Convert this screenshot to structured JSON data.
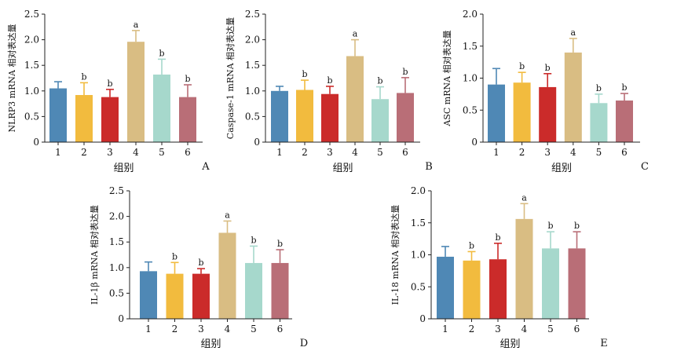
{
  "chart_data": [
    {
      "type": "bar",
      "panel": "A",
      "categories": [
        "1",
        "2",
        "3",
        "4",
        "5",
        "6"
      ],
      "values": [
        1.05,
        0.92,
        0.88,
        1.96,
        1.32,
        0.88
      ],
      "errors": [
        0.13,
        0.24,
        0.15,
        0.22,
        0.3,
        0.24
      ],
      "significance": [
        "",
        "b",
        "b",
        "a",
        "b",
        "b"
      ],
      "ylabel": "NLRP3 mRNA 相对表达量",
      "xlabel": "组别",
      "ylim": [
        0,
        2.5
      ],
      "yticks": [
        "0",
        "0.5",
        "1.0",
        "1.5",
        "2.0",
        "2.5"
      ],
      "colors": [
        "#4f88b5",
        "#f2bb3e",
        "#cb2b2a",
        "#d9bd83",
        "#a6d8cc",
        "#b96e77"
      ]
    },
    {
      "type": "bar",
      "panel": "B",
      "categories": [
        "1",
        "2",
        "3",
        "4",
        "5",
        "6"
      ],
      "values": [
        1.0,
        1.02,
        0.94,
        1.68,
        0.84,
        0.96
      ],
      "errors": [
        0.09,
        0.19,
        0.15,
        0.32,
        0.24,
        0.3
      ],
      "significance": [
        "",
        "b",
        "b",
        "a",
        "b",
        "b"
      ],
      "ylabel": "Caspase-1 mRNA 相对表达量",
      "xlabel": "组别",
      "ylim": [
        0,
        2.5
      ],
      "yticks": [
        "0",
        "0.5",
        "1.0",
        "1.5",
        "2.0",
        "2.5"
      ],
      "colors": [
        "#4f88b5",
        "#f2bb3e",
        "#cb2b2a",
        "#d9bd83",
        "#a6d8cc",
        "#b96e77"
      ]
    },
    {
      "type": "bar",
      "panel": "C",
      "categories": [
        "1",
        "2",
        "3",
        "4",
        "5",
        "6"
      ],
      "values": [
        0.9,
        0.93,
        0.86,
        1.4,
        0.61,
        0.65
      ],
      "errors": [
        0.25,
        0.16,
        0.21,
        0.22,
        0.14,
        0.11
      ],
      "significance": [
        "",
        "b",
        "b",
        "a",
        "b",
        "b"
      ],
      "ylabel": "ASC mRNA 相对表达量",
      "xlabel": "组别",
      "ylim": [
        0,
        2.0
      ],
      "yticks": [
        "0",
        "0.5",
        "1.0",
        "1.5",
        "2.0"
      ],
      "colors": [
        "#4f88b5",
        "#f2bb3e",
        "#cb2b2a",
        "#d9bd83",
        "#a6d8cc",
        "#b96e77"
      ]
    },
    {
      "type": "bar",
      "panel": "D",
      "categories": [
        "1",
        "2",
        "3",
        "4",
        "5",
        "6"
      ],
      "values": [
        0.93,
        0.88,
        0.88,
        1.68,
        1.09,
        1.09
      ],
      "errors": [
        0.18,
        0.22,
        0.1,
        0.23,
        0.33,
        0.26
      ],
      "significance": [
        "",
        "b",
        "b",
        "a",
        "b",
        "b"
      ],
      "ylabel": "IL-1β mRNA 相对表达量",
      "xlabel": "组别",
      "ylim": [
        0,
        2.5
      ],
      "yticks": [
        "0",
        "0.5",
        "1.0",
        "1.5",
        "2.0",
        "2.5"
      ],
      "colors": [
        "#4f88b5",
        "#f2bb3e",
        "#cb2b2a",
        "#d9bd83",
        "#a6d8cc",
        "#b96e77"
      ]
    },
    {
      "type": "bar",
      "panel": "E",
      "categories": [
        "1",
        "2",
        "3",
        "4",
        "5",
        "6"
      ],
      "values": [
        0.97,
        0.91,
        0.93,
        1.56,
        1.1,
        1.1
      ],
      "errors": [
        0.16,
        0.14,
        0.25,
        0.24,
        0.26,
        0.26
      ],
      "significance": [
        "",
        "b",
        "b",
        "a",
        "b",
        "b"
      ],
      "ylabel": "IL-18 mRNA 相对表达量",
      "xlabel": "组别",
      "ylim": [
        0,
        2.0
      ],
      "yticks": [
        "0",
        "0.5",
        "1.0",
        "1.5",
        "2.0"
      ],
      "colors": [
        "#4f88b5",
        "#f2bb3e",
        "#cb2b2a",
        "#d9bd83",
        "#a6d8cc",
        "#b96e77"
      ]
    }
  ]
}
